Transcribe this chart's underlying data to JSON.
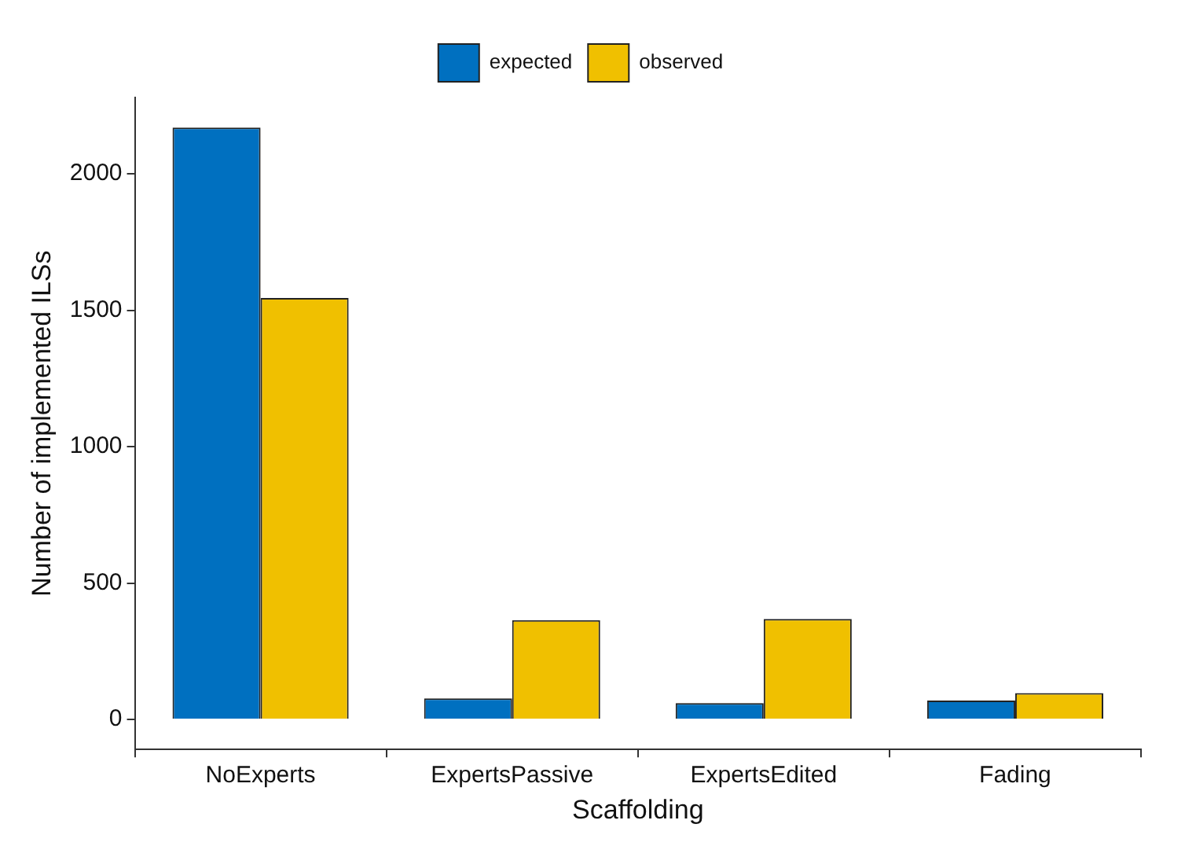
{
  "chart_data": {
    "type": "bar",
    "xlabel": "Scaffolding",
    "ylabel": "Number of implemented ILSs",
    "categories": [
      "NoExperts",
      "ExpertsPassive",
      "ExpertsEdited",
      "Fading"
    ],
    "series": [
      {
        "name": "expected",
        "color": "#0070c0",
        "values": [
          2170,
          77,
          60,
          69
        ]
      },
      {
        "name": "observed",
        "color": "#f0c000",
        "values": [
          1545,
          364,
          368,
          97
        ]
      }
    ],
    "ylim": [
      -110,
      2280
    ],
    "yticks": [
      0,
      500,
      1000,
      1500,
      2000
    ],
    "grid": false,
    "legend": "top"
  }
}
